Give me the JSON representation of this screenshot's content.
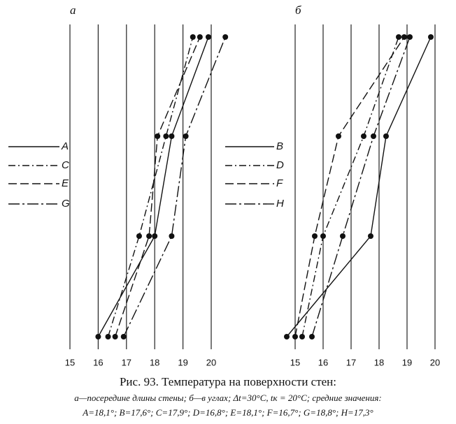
{
  "chart_data": [
    {
      "type": "line",
      "title": "а",
      "categories": [
        null,
        null,
        null,
        null
      ],
      "series": [
        {
          "name": "A",
          "style": "solid",
          "color": "#111",
          "values": [
            16.0,
            18.0,
            18.6,
            19.9
          ]
        },
        {
          "name": "C",
          "style": "dash-dot",
          "color": "#111",
          "values": [
            16.35,
            17.45,
            18.4,
            19.35
          ]
        },
        {
          "name": "E",
          "style": "dash",
          "color": "#111",
          "values": [
            16.6,
            17.8,
            18.1,
            19.6
          ]
        },
        {
          "name": "G",
          "style": "long-dash-dot",
          "color": "#111",
          "values": [
            16.9,
            18.6,
            19.1,
            20.5
          ]
        }
      ],
      "xlim": [
        15,
        20
      ],
      "xticks": [
        15,
        16,
        17,
        18,
        19,
        20
      ],
      "grid": true
    },
    {
      "type": "line",
      "title": "б",
      "categories": [
        null,
        null,
        null,
        null
      ],
      "series": [
        {
          "name": "B",
          "style": "solid",
          "color": "#111",
          "values": [
            14.7,
            17.7,
            18.25,
            19.85
          ]
        },
        {
          "name": "D",
          "style": "dash-dot",
          "color": "#111",
          "values": [
            15.25,
            16.0,
            17.45,
            18.7
          ]
        },
        {
          "name": "F",
          "style": "dash",
          "color": "#111",
          "values": [
            15.0,
            15.7,
            16.55,
            18.9
          ]
        },
        {
          "name": "H",
          "style": "long-dash-dot",
          "color": "#111",
          "values": [
            15.6,
            16.7,
            17.8,
            19.1
          ]
        }
      ],
      "xlim": [
        15,
        20
      ],
      "xticks": [
        15,
        16,
        17,
        18,
        19,
        20
      ],
      "grid": true
    }
  ],
  "caption": {
    "title": "Рис. 93. Температура на поверхности стен:",
    "line1": "а—посередине длины стены; б—в углах; Δt=30°C, tк = 20°C; средние значения:",
    "line2": "A=18,1°; B=17,6°; C=17,9°; D=16,8°; E=18,1°; F=16,7°; G=18,8°; H=17,3°"
  }
}
